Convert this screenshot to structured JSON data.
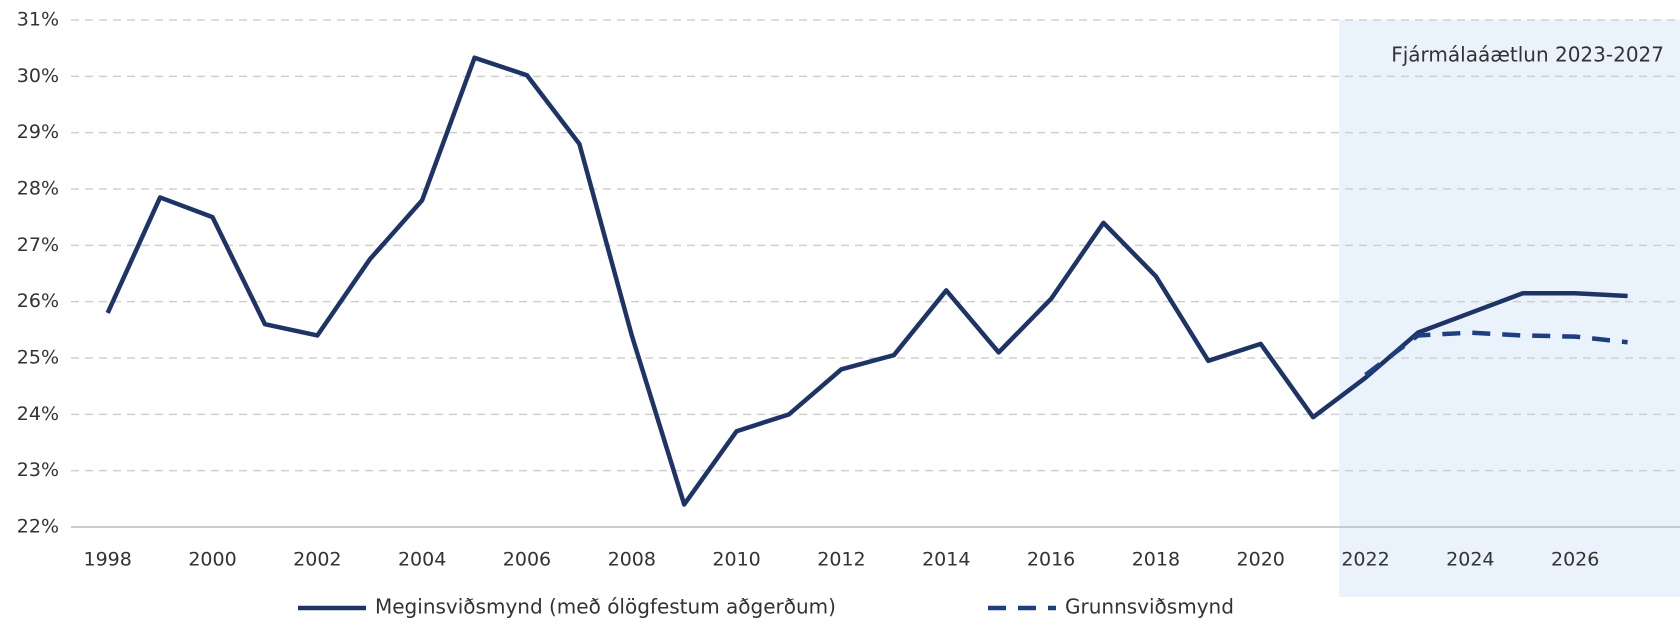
{
  "chart_data": {
    "type": "line",
    "x": [
      1998,
      1999,
      2000,
      2001,
      2002,
      2003,
      2004,
      2005,
      2006,
      2007,
      2008,
      2009,
      2010,
      2011,
      2012,
      2013,
      2014,
      2015,
      2016,
      2017,
      2018,
      2019,
      2020,
      2021,
      2022,
      2023,
      2024,
      2025,
      2026,
      2027
    ],
    "series": [
      {
        "name": "Meginsviðsmynd (með ólögfestum aðgerðum)",
        "color": "#1f3466",
        "dash": false,
        "values": [
          25.8,
          27.85,
          27.5,
          25.6,
          25.4,
          26.75,
          27.8,
          30.33,
          30.02,
          28.8,
          25.4,
          22.4,
          23.7,
          24.0,
          24.8,
          25.05,
          26.2,
          25.1,
          26.05,
          27.4,
          26.45,
          24.95,
          25.25,
          23.95,
          24.65,
          25.45,
          25.8,
          26.15,
          26.15,
          26.1
        ]
      },
      {
        "name": "Grunnsviðsmynd",
        "color": "#1d3f7f",
        "dash": true,
        "values": [
          null,
          null,
          null,
          null,
          null,
          null,
          null,
          null,
          null,
          null,
          null,
          null,
          null,
          null,
          null,
          null,
          null,
          null,
          null,
          null,
          null,
          null,
          null,
          null,
          24.7,
          25.4,
          25.45,
          25.4,
          25.38,
          25.28
        ]
      }
    ],
    "xlim": [
      1997.3,
      2028
    ],
    "xticks": [
      1998,
      2000,
      2002,
      2004,
      2006,
      2008,
      2010,
      2012,
      2014,
      2016,
      2018,
      2020,
      2022,
      2024,
      2026
    ],
    "ylim": [
      22,
      31
    ],
    "yticks": [
      {
        "value": 22,
        "label": "22%"
      },
      {
        "value": 23,
        "label": "23%"
      },
      {
        "value": 24,
        "label": "24%"
      },
      {
        "value": 25,
        "label": "25%"
      },
      {
        "value": 26,
        "label": "26%"
      },
      {
        "value": 27,
        "label": "27%"
      },
      {
        "value": 28,
        "label": "28%"
      },
      {
        "value": 29,
        "label": "29%"
      },
      {
        "value": 30,
        "label": "30%"
      },
      {
        "value": 31,
        "label": "31%"
      }
    ],
    "grid": true,
    "shade": {
      "from": 2021.5,
      "to": 2028,
      "color": "#eaf2fb",
      "label": "Fjármálaáætlun 2023-2027"
    },
    "legend": "bottom"
  }
}
